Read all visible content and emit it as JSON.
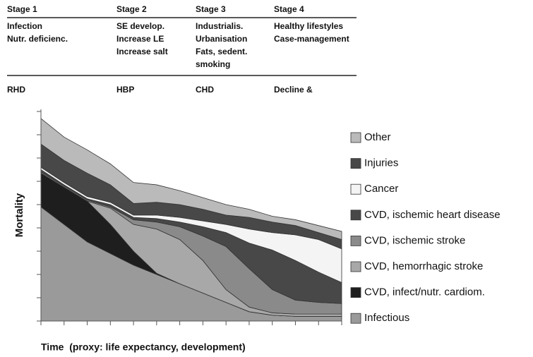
{
  "table": {
    "headers": [
      "Stage 1",
      "Stage 2",
      "Stage 3",
      "Stage 4"
    ],
    "causes": [
      [
        "Infection",
        "Nutr. deficienc."
      ],
      [
        "SE develop.",
        "Increase LE",
        "Increase salt"
      ],
      [
        "Industrialis.",
        "Urbanisation",
        "Fats, sedent.",
        "smoking"
      ],
      [
        "Healthy lifestyles",
        "Case-management"
      ]
    ],
    "diseases": [
      "RHD",
      "HBP",
      "CHD",
      "Decline &"
    ]
  },
  "chart_data": {
    "type": "stacked_area",
    "ylabel": "Mortality",
    "xlabel": "Time  (proxy: life expectancy, development)",
    "x": [
      0,
      1,
      2,
      3,
      4,
      5,
      6,
      7,
      8,
      9,
      10,
      11,
      12,
      13
    ],
    "xlim": [
      0,
      13
    ],
    "xticks": [
      0,
      1,
      2,
      3,
      4,
      5,
      6,
      7,
      8,
      9,
      10,
      11,
      12,
      13
    ],
    "ylim": [
      0,
      9
    ],
    "yticks": [
      0,
      1,
      2,
      3,
      4,
      5,
      6,
      7,
      8,
      9
    ],
    "series": [
      {
        "name": "Infectious",
        "color": "#9a9a9a",
        "values": [
          4.9,
          4.15,
          3.4,
          2.9,
          2.4,
          2.0,
          1.6,
          1.2,
          0.8,
          0.4,
          0.25,
          0.2,
          0.2,
          0.2
        ]
      },
      {
        "name": "CVD, infect/nutr. cardiom.",
        "color": "#1e1e1e",
        "values": [
          1.45,
          1.6,
          1.75,
          1.25,
          0.6,
          0.05,
          0,
          0,
          0,
          0,
          0,
          0,
          0,
          0
        ]
      },
      {
        "name": "CVD, hemorrhagic stroke",
        "color": "#a8a8a8",
        "values": [
          0,
          0,
          0,
          0.7,
          1.15,
          1.9,
          1.9,
          1.4,
          0.55,
          0.2,
          0.1,
          0.1,
          0.1,
          0.1
        ]
      },
      {
        "name": "CVD, ischemic stroke",
        "color": "#8a8a8a",
        "values": [
          0.05,
          0.05,
          0.05,
          0.05,
          0.2,
          0.3,
          0.55,
          1.05,
          1.85,
          1.65,
          1.0,
          0.6,
          0.5,
          0.45
        ]
      },
      {
        "name": "CVD, ischemic heart disease",
        "color": "#484848",
        "values": [
          0.1,
          0.05,
          0.05,
          0.1,
          0.1,
          0.15,
          0.2,
          0.4,
          0.6,
          1.1,
          1.7,
          1.7,
          1.3,
          0.9
        ]
      },
      {
        "name": "Cancer",
        "color": "#f4f4f4",
        "values": [
          0.1,
          0.1,
          0.1,
          0.1,
          0.1,
          0.15,
          0.2,
          0.25,
          0.35,
          0.6,
          0.75,
          1.1,
          1.4,
          1.45
        ]
      },
      {
        "name": "Injuries",
        "color": "#484848",
        "values": [
          1.0,
          0.95,
          1.0,
          0.75,
          0.5,
          0.55,
          0.55,
          0.5,
          0.4,
          0.5,
          0.45,
          0.4,
          0.3,
          0.4
        ]
      },
      {
        "name": "Other",
        "color": "#bababa",
        "values": [
          1.1,
          1.0,
          1.0,
          0.9,
          0.9,
          0.75,
          0.6,
          0.5,
          0.45,
          0.35,
          0.25,
          0.25,
          0.3,
          0.35
        ]
      }
    ]
  }
}
